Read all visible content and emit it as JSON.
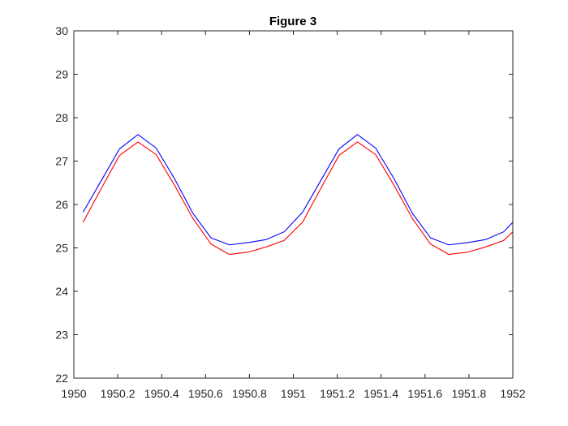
{
  "chart_data": {
    "type": "line",
    "title": "Figure 3",
    "xlabel": "",
    "ylabel": "",
    "xlim": [
      1950,
      1952
    ],
    "ylim": [
      22,
      30
    ],
    "x_ticks": [
      1950,
      1950.2,
      1950.4,
      1950.6,
      1950.8,
      1951,
      1951.2,
      1951.4,
      1951.6,
      1951.8,
      1952
    ],
    "x_tick_labels": [
      "1950",
      "1950.2",
      "1950.4",
      "1950.6",
      "1950.8",
      "1951",
      "1951.2",
      "1951.4",
      "1951.6",
      "1951.8",
      "1952"
    ],
    "y_ticks": [
      22,
      23,
      24,
      25,
      26,
      27,
      28,
      29,
      30
    ],
    "y_tick_labels": [
      "22",
      "23",
      "24",
      "25",
      "26",
      "27",
      "28",
      "29",
      "30"
    ],
    "grid": false,
    "legend": "none",
    "x": [
      1950.042,
      1950.125,
      1950.208,
      1950.292,
      1950.375,
      1950.458,
      1950.542,
      1950.625,
      1950.708,
      1950.792,
      1950.875,
      1950.958,
      1951.042,
      1951.125,
      1951.208,
      1951.292,
      1951.375,
      1951.458,
      1951.542,
      1951.625,
      1951.708,
      1951.792,
      1951.875,
      1951.958,
      1952
    ],
    "series": [
      {
        "color": "#0000ff",
        "values": [
          25.82,
          26.55,
          27.28,
          27.61,
          27.3,
          26.6,
          25.8,
          25.23,
          25.07,
          25.12,
          25.19,
          25.37,
          25.82,
          26.55,
          27.28,
          27.61,
          27.3,
          26.6,
          25.8,
          25.23,
          25.07,
          25.12,
          25.19,
          25.37,
          25.59
        ]
      },
      {
        "color": "#ff0000",
        "values": [
          25.59,
          26.37,
          27.13,
          27.44,
          27.15,
          26.45,
          25.68,
          25.09,
          24.85,
          24.9,
          25.02,
          25.17,
          25.59,
          26.37,
          27.13,
          27.44,
          27.15,
          26.45,
          25.68,
          25.09,
          24.85,
          24.9,
          25.02,
          25.17,
          25.37
        ]
      }
    ]
  }
}
